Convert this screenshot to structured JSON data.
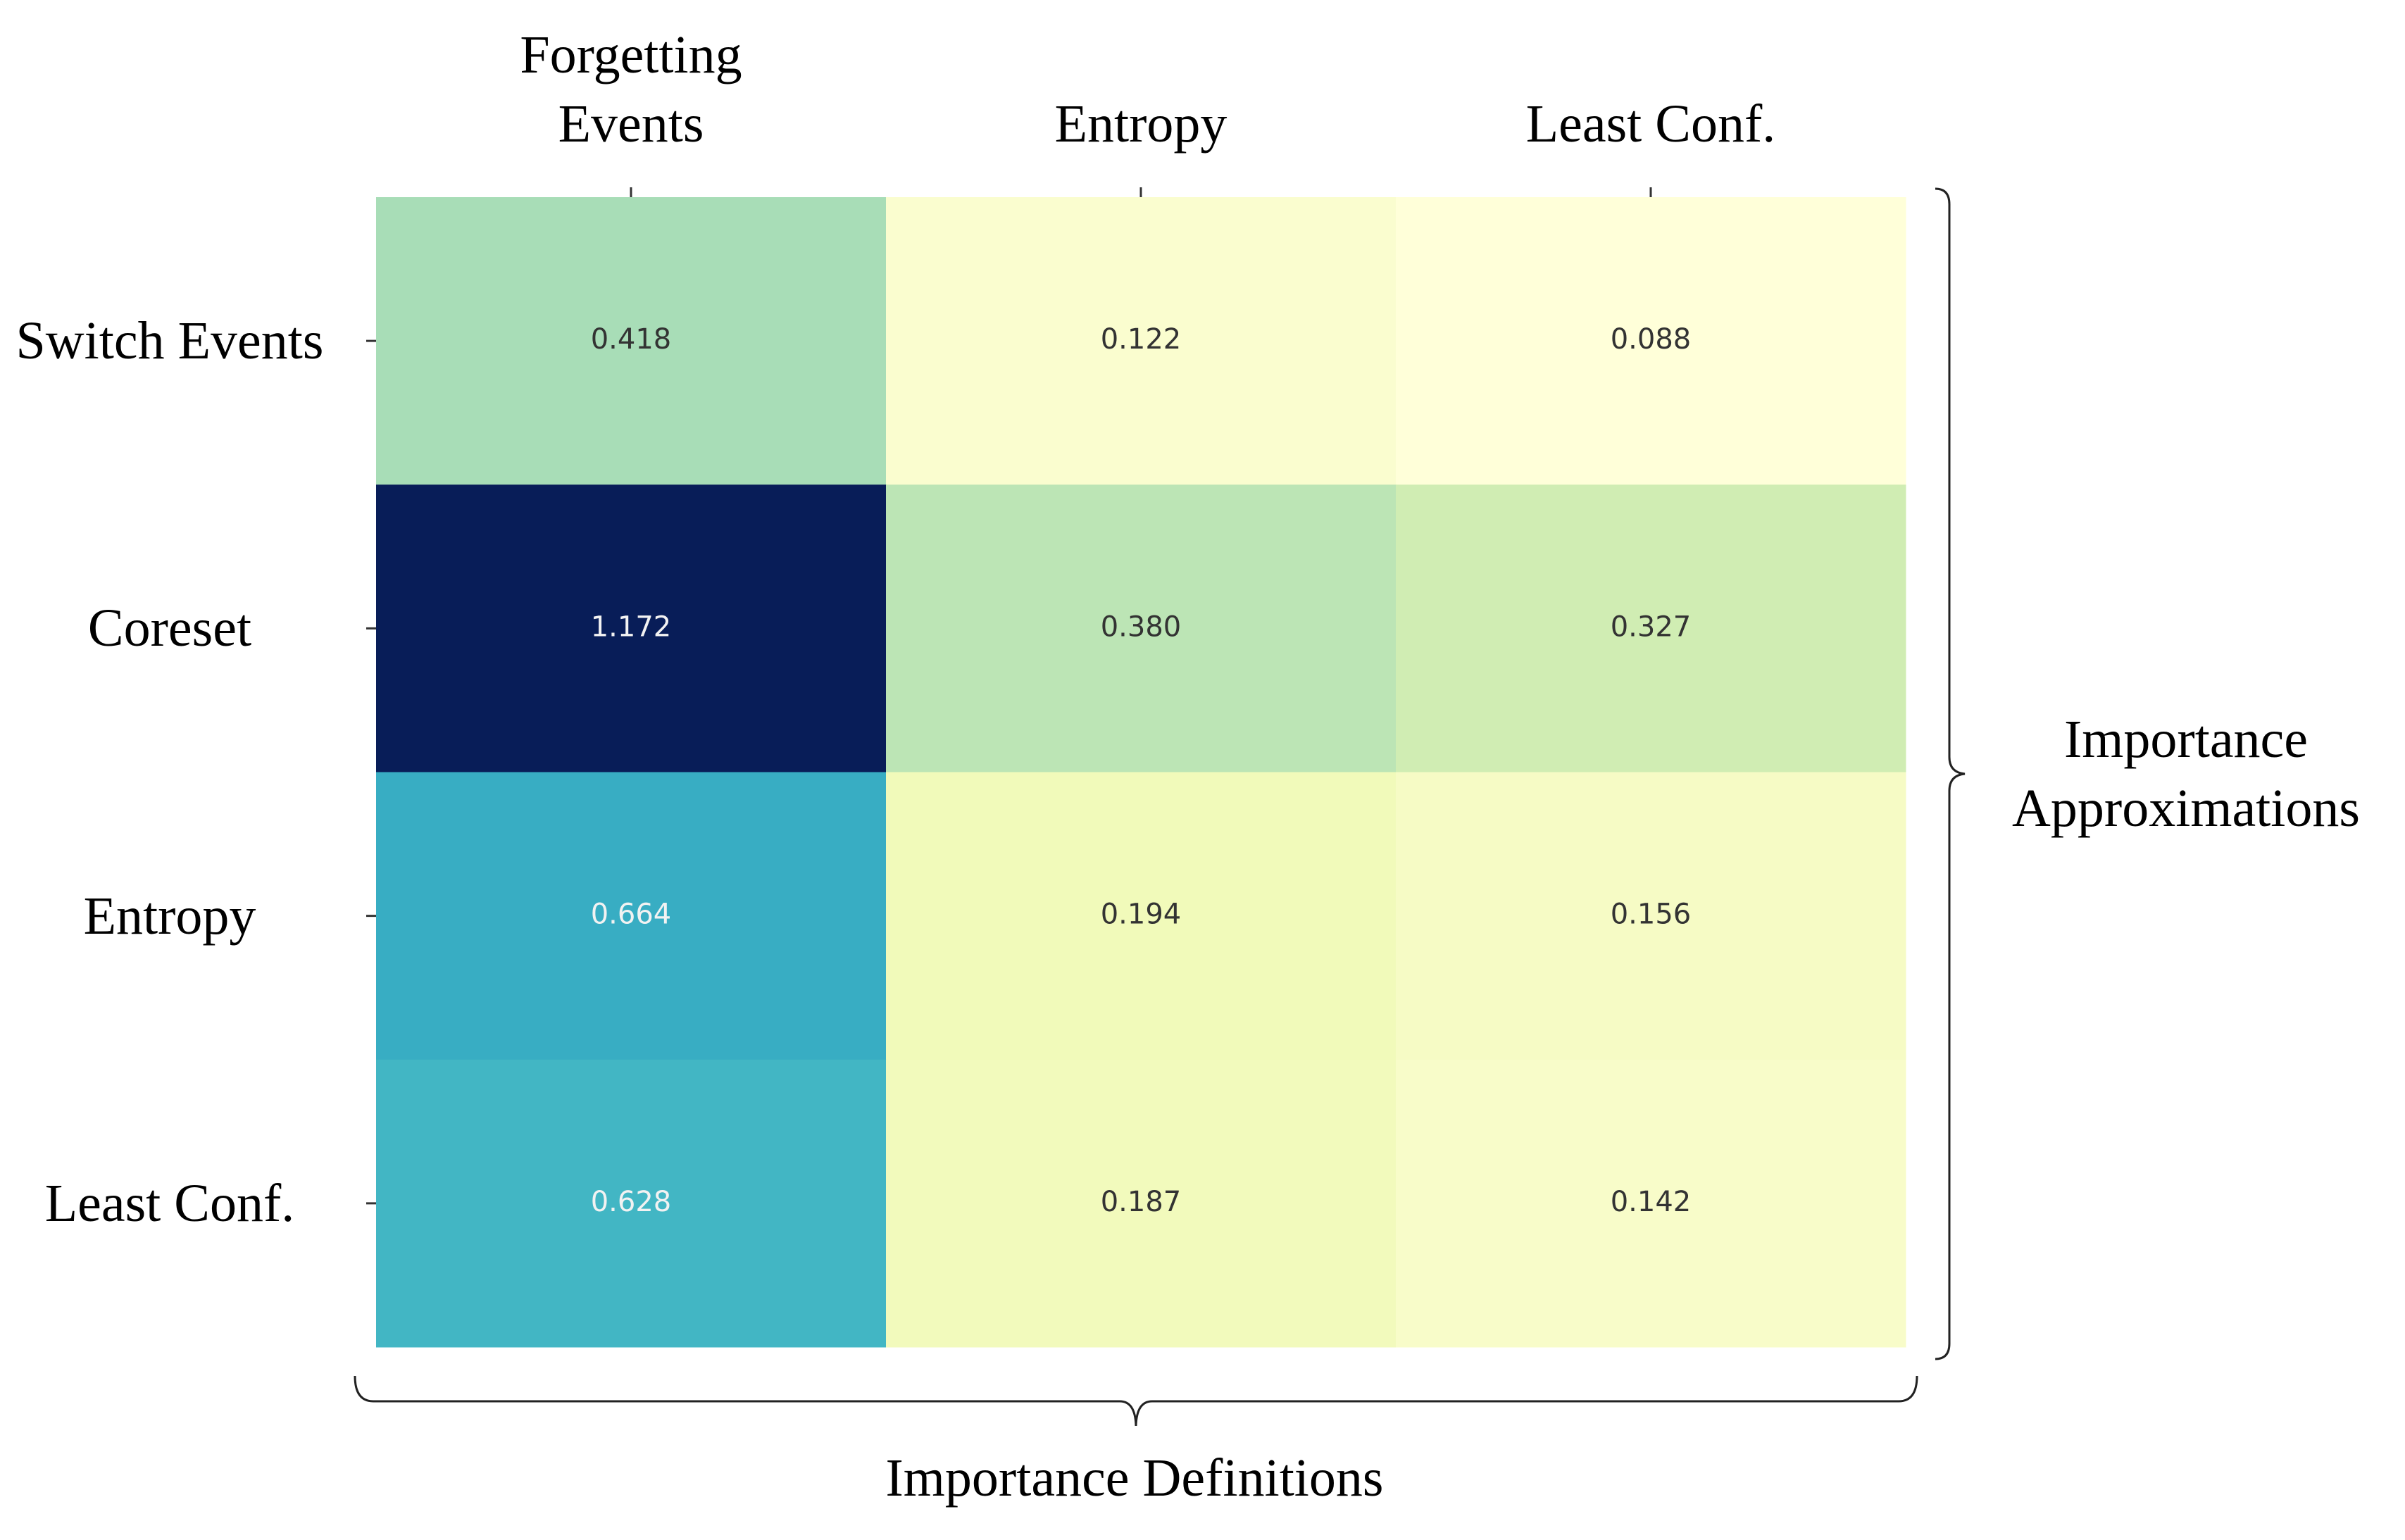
{
  "chart_data": {
    "type": "heatmap",
    "x_categories": [
      "Forgetting Events",
      "Entropy",
      "Least Conf."
    ],
    "y_categories": [
      "Switch Events",
      "Coreset",
      "Entropy",
      "Least Conf."
    ],
    "values": [
      [
        0.418,
        0.122,
        0.088
      ],
      [
        1.172,
        0.38,
        0.327
      ],
      [
        0.664,
        0.194,
        0.156
      ],
      [
        0.628,
        0.187,
        0.142
      ]
    ],
    "value_labels": [
      [
        "0.418",
        "0.122",
        "0.088"
      ],
      [
        "1.172",
        "0.380",
        "0.327"
      ],
      [
        "0.664",
        "0.194",
        "0.156"
      ],
      [
        "0.628",
        "0.187",
        "0.142"
      ]
    ],
    "xlabel": "Importance Definitions",
    "ylabel": "Importance Approximations",
    "colormap": "YlGnBu"
  }
}
